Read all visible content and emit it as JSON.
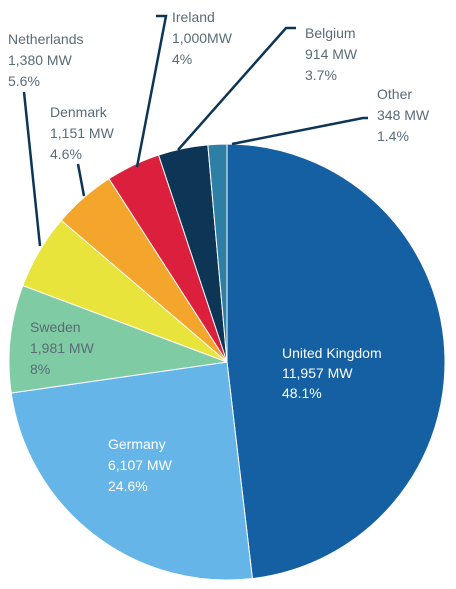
{
  "chart_data": {
    "type": "pie",
    "title": "",
    "unit": "MW",
    "slices": [
      {
        "name": "United Kingdom",
        "value_text": "11,957 MW",
        "value": 11957,
        "percent_text": "48.1%",
        "percent": 48.1,
        "color": "#1560a3"
      },
      {
        "name": "Germany",
        "value_text": "6,107 MW",
        "value": 6107,
        "percent_text": "24.6%",
        "percent": 24.6,
        "color": "#66b5e8"
      },
      {
        "name": "Sweden",
        "value_text": "1,981 MW",
        "value": 1981,
        "percent_text": "8%",
        "percent": 8.0,
        "color": "#7fcba3"
      },
      {
        "name": "Netherlands",
        "value_text": "1,380 MW",
        "value": 1380,
        "percent_text": "5.6%",
        "percent": 5.6,
        "color": "#e8e43c"
      },
      {
        "name": "Denmark",
        "value_text": "1,151 MW",
        "value": 1151,
        "percent_text": "4.6%",
        "percent": 4.6,
        "color": "#f4a52c"
      },
      {
        "name": "Ireland",
        "value_text": "1,000MW",
        "value": 1000,
        "percent_text": "4%",
        "percent": 4.0,
        "color": "#dc1f3c"
      },
      {
        "name": "Belgium",
        "value_text": "914 MW",
        "value": 914,
        "percent_text": "3.7%",
        "percent": 3.7,
        "color": "#0d3556"
      },
      {
        "name": "Other",
        "value_text": "348 MW",
        "value": 348,
        "percent_text": "1.4%",
        "percent": 1.4,
        "color": "#2e7fa6"
      }
    ]
  }
}
